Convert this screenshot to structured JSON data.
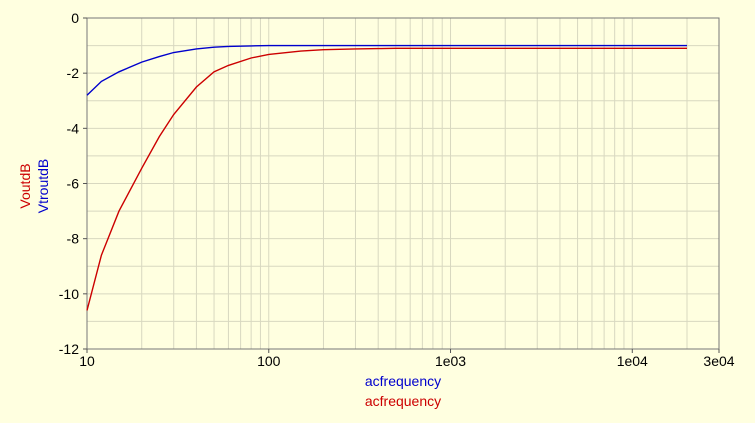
{
  "chart_data": {
    "type": "line",
    "x_scale": "log",
    "xlim": [
      10,
      30000
    ],
    "ylim": [
      -12,
      0
    ],
    "grid": true,
    "x_ticks": [
      {
        "value": 10,
        "label": "10"
      },
      {
        "value": 100,
        "label": "100"
      },
      {
        "value": 1000,
        "label": "1e03"
      },
      {
        "value": 10000,
        "label": "1e04"
      },
      {
        "value": 30000,
        "label": "3e04"
      }
    ],
    "y_ticks": [
      {
        "value": 0,
        "label": "0"
      },
      {
        "value": -2,
        "label": "-2"
      },
      {
        "value": -4,
        "label": "-4"
      },
      {
        "value": -6,
        "label": "-6"
      },
      {
        "value": -8,
        "label": "-8"
      },
      {
        "value": -10,
        "label": "-10"
      },
      {
        "value": -12,
        "label": "-12"
      }
    ],
    "xlabels": [
      {
        "text": "acfrequency",
        "color": "#0000cc"
      },
      {
        "text": "acfrequency",
        "color": "#cc0000"
      }
    ],
    "ylabels": [
      {
        "text": "VoutdB",
        "color": "#cc0000"
      },
      {
        "text": "VtroutdB",
        "color": "#0000cc"
      }
    ],
    "series": [
      {
        "color": "#0000cc",
        "x": [
          10,
          12,
          15,
          20,
          25,
          30,
          40,
          50,
          60,
          80,
          100,
          150,
          200,
          300,
          500,
          1000,
          2000,
          5000,
          10000,
          20000
        ],
        "y": [
          -2.8,
          -2.3,
          -1.95,
          -1.6,
          -1.4,
          -1.25,
          -1.12,
          -1.06,
          -1.03,
          -1.01,
          -1.0,
          -1.0,
          -1.0,
          -1.0,
          -1.0,
          -1.0,
          -1.0,
          -1.0,
          -1.0,
          -1.0
        ]
      },
      {
        "color": "#cc0000",
        "x": [
          10,
          12,
          15,
          20,
          25,
          30,
          40,
          50,
          60,
          80,
          100,
          150,
          200,
          300,
          400,
          500,
          1000,
          2000,
          5000,
          10000,
          20000
        ],
        "y": [
          -10.6,
          -8.6,
          -7.0,
          -5.45,
          -4.3,
          -3.5,
          -2.5,
          -1.95,
          -1.72,
          -1.45,
          -1.32,
          -1.2,
          -1.15,
          -1.12,
          -1.11,
          -1.1,
          -1.1,
          -1.1,
          -1.1,
          -1.1,
          -1.1
        ]
      }
    ]
  }
}
